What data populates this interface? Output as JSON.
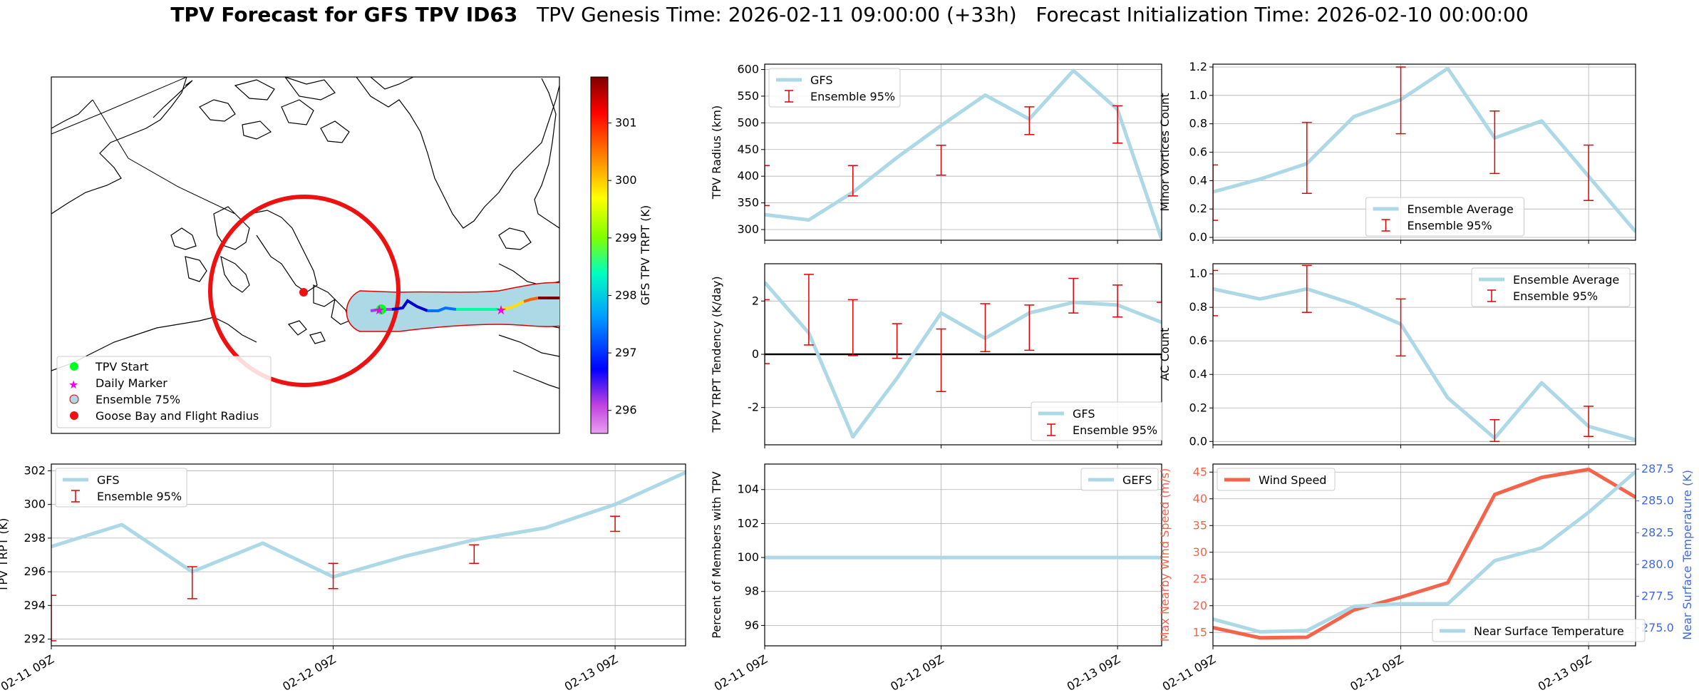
{
  "title": {
    "bold": "TPV Forecast for GFS TPV ID63",
    "genesis": "TPV Genesis Time: 2026-02-11 09:00:00 (+33h)",
    "init": "Forecast Initialization Time: 2026-02-10 00:00:00"
  },
  "colors": {
    "line_blue": "#add8e6",
    "err_red": "#e00000",
    "wind": "#f4634a",
    "temp_axis": "#4169e1"
  },
  "map": {
    "colorbar": {
      "label": "GFS TPV TRPT (K)",
      "ticks": [
        296,
        297,
        298,
        299,
        300,
        301
      ],
      "range": [
        295.6,
        301.8
      ],
      "colormap": "gist_rainbow-like"
    },
    "legend": [
      "TPV Start",
      "Daily Marker",
      "Ensemble 75%",
      "Goose Bay and Flight Radius"
    ]
  },
  "chart_data": [
    {
      "id": "radius",
      "type": "line",
      "ylabel": "TPV Radius (km)",
      "ylim": [
        280,
        610
      ],
      "yticks": [
        300,
        350,
        400,
        450,
        500,
        550,
        600
      ],
      "xlim": [
        0,
        9
      ],
      "xtick_positions": [
        0,
        4,
        8
      ],
      "series": [
        {
          "name": "GFS",
          "x": [
            0,
            1,
            2,
            3,
            4,
            5,
            6,
            7,
            8,
            9
          ],
          "values": [
            328,
            318,
            370,
            435,
            495,
            552,
            507,
            598,
            525,
            282
          ]
        },
        {
          "name": "Ensemble 95%",
          "kind": "errorbar",
          "x": [
            0,
            2,
            4,
            6,
            8
          ],
          "low": [
            345,
            363,
            402,
            478,
            462
          ],
          "high": [
            420,
            420,
            458,
            530,
            532
          ]
        }
      ],
      "legend": "top-left"
    },
    {
      "id": "minor_vortices",
      "type": "line",
      "ylabel": "Minor Vortices Count",
      "ylim": [
        -0.02,
        1.22
      ],
      "yticks": [
        0.0,
        0.2,
        0.4,
        0.6,
        0.8,
        1.0,
        1.2
      ],
      "xlim": [
        0,
        9
      ],
      "xtick_positions": [
        0,
        4,
        8
      ],
      "series": [
        {
          "name": "Ensemble Average",
          "x": [
            0,
            1,
            2,
            3,
            4,
            5,
            6,
            7,
            8,
            9
          ],
          "values": [
            0.32,
            0.41,
            0.52,
            0.85,
            0.97,
            1.19,
            0.7,
            0.82,
            0.43,
            0.04
          ]
        },
        {
          "name": "Ensemble 95%",
          "kind": "errorbar",
          "x": [
            0,
            2,
            4,
            6,
            8
          ],
          "low": [
            0.12,
            0.31,
            0.73,
            0.45,
            0.26
          ],
          "high": [
            0.51,
            0.81,
            1.2,
            0.89,
            0.65
          ]
        }
      ],
      "legend": "bottom-center"
    },
    {
      "id": "tendency",
      "type": "line",
      "ylabel": "TPV TRPT Tendency (K/day)",
      "ylim": [
        -3.4,
        3.4
      ],
      "yticks": [
        -2,
        0,
        2
      ],
      "xlim": [
        0,
        9
      ],
      "xtick_positions": [
        0,
        4,
        8
      ],
      "zero_line": true,
      "series": [
        {
          "name": "GFS",
          "x": [
            0,
            1,
            2,
            3,
            4,
            5,
            6,
            7,
            8,
            9
          ],
          "values": [
            2.7,
            0.8,
            -3.1,
            -0.9,
            1.55,
            0.6,
            1.55,
            1.95,
            1.85,
            1.2
          ]
        },
        {
          "name": "Ensemble 95%",
          "kind": "errorbar",
          "x": [
            0,
            1,
            2,
            3,
            4,
            5,
            6,
            7,
            8,
            9
          ],
          "low": [
            -0.35,
            0.35,
            -0.05,
            -0.15,
            -1.4,
            0.1,
            0.15,
            1.55,
            1.4,
            1.95
          ],
          "high": [
            2.05,
            3.0,
            2.05,
            1.15,
            0.95,
            1.9,
            1.85,
            2.85,
            2.6,
            3.4
          ]
        }
      ],
      "legend": "bottom-right"
    },
    {
      "id": "ac_count",
      "type": "line",
      "ylabel": "AC Count",
      "ylim": [
        -0.02,
        1.06
      ],
      "yticks": [
        0.0,
        0.2,
        0.4,
        0.6,
        0.8,
        1.0
      ],
      "xlim": [
        0,
        9
      ],
      "xtick_positions": [
        0,
        4,
        8
      ],
      "series": [
        {
          "name": "Ensemble Average",
          "x": [
            0,
            1,
            2,
            3,
            4,
            5,
            6,
            7,
            8,
            9
          ],
          "values": [
            0.91,
            0.85,
            0.91,
            0.82,
            0.7,
            0.26,
            0.02,
            0.35,
            0.09,
            0.01
          ]
        },
        {
          "name": "Ensemble 95%",
          "kind": "errorbar",
          "x": [
            0,
            2,
            4,
            6,
            8
          ],
          "low": [
            0.75,
            0.77,
            0.51,
            0.0,
            0.03
          ],
          "high": [
            1.02,
            1.05,
            0.85,
            0.13,
            0.21
          ]
        }
      ],
      "legend": "top-right"
    },
    {
      "id": "trpt",
      "type": "line",
      "ylabel": "TPV TRPT (K)",
      "ylim": [
        291.6,
        302.4
      ],
      "yticks": [
        292,
        294,
        296,
        298,
        300,
        302
      ],
      "xlim": [
        0,
        9
      ],
      "xtick_positions": [
        0,
        4,
        8
      ],
      "series": [
        {
          "name": "GFS",
          "x": [
            0,
            1,
            2,
            3,
            4,
            5,
            6,
            7,
            8,
            9
          ],
          "values": [
            297.5,
            298.8,
            296.0,
            297.7,
            295.7,
            296.9,
            297.9,
            298.6,
            300.0,
            301.9
          ]
        },
        {
          "name": "Ensemble 95%",
          "kind": "errorbar",
          "x": [
            0,
            2,
            4,
            6,
            8
          ],
          "low": [
            291.9,
            294.4,
            295.0,
            296.5,
            298.4
          ],
          "high": [
            294.6,
            296.3,
            296.5,
            297.6,
            299.3
          ]
        }
      ],
      "legend": "top-left"
    },
    {
      "id": "percent_members",
      "type": "line",
      "ylabel": "Percent of Members with TPV",
      "ylim": [
        94.8,
        105.5
      ],
      "yticks": [
        96,
        98,
        100,
        102,
        104
      ],
      "xlim": [
        0,
        9
      ],
      "xtick_positions": [
        0,
        4,
        8
      ],
      "series": [
        {
          "name": "GEFS",
          "x": [
            0,
            9
          ],
          "values": [
            100,
            100
          ]
        }
      ],
      "legend": "top-right"
    },
    {
      "id": "wind_temp",
      "type": "line",
      "ylabel": "Max Nearby Wind Speed (m/s)",
      "ylim": [
        12.5,
        46.5
      ],
      "yticks": [
        15,
        20,
        25,
        30,
        35,
        40,
        45
      ],
      "y2label": "Near Surface Temperature (K)",
      "y2lim": [
        273.6,
        287.9
      ],
      "y2ticks": [
        "275.0",
        "277.5",
        "280.0",
        "282.5",
        "285.0",
        "287.5"
      ],
      "xlim": [
        0,
        9
      ],
      "xtick_positions": [
        0,
        4,
        8
      ],
      "series": [
        {
          "name": "Wind Speed",
          "axis": "left",
          "x": [
            0,
            1,
            2,
            3,
            4,
            5,
            6,
            7,
            8,
            9
          ],
          "values": [
            15.9,
            14.0,
            14.1,
            19.2,
            21.6,
            24.3,
            40.8,
            44.0,
            45.5,
            40.3
          ]
        },
        {
          "name": "Near Surface Temperature",
          "axis": "right",
          "x": [
            0,
            1,
            2,
            3,
            4,
            5,
            6,
            7,
            8,
            9
          ],
          "values": [
            275.7,
            274.7,
            274.8,
            276.7,
            276.9,
            276.9,
            280.3,
            281.3,
            284.1,
            287.3
          ]
        }
      ],
      "legend": "top-left / bottom-right"
    }
  ],
  "xticks": [
    "02-11 09Z",
    "02-12 09Z",
    "02-13 09Z"
  ]
}
